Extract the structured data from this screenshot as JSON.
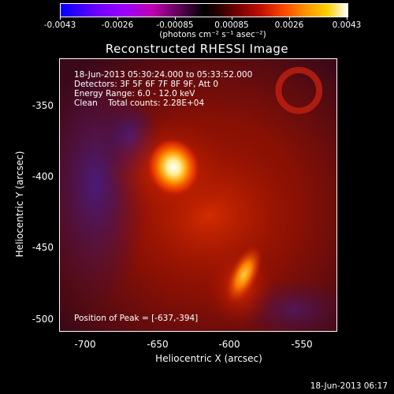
{
  "colorbar": {
    "labels": [
      "-0.0043",
      "-0.0026",
      "-0.00085",
      "0.00085",
      "0.0026",
      "0.0043"
    ],
    "units": "(photons cm⁻² s⁻¹ asec⁻²)"
  },
  "title": "Reconstructed RHESSI Image",
  "info": {
    "time_range": "18-Jun-2013 05:30:24.000 to 05:33:52.000",
    "detectors": "Detectors: 3F 5F 6F 7F 8F 9F, Att 0",
    "energy": "Energy Range: 6.0 - 12.0 keV",
    "clean": "Clean    Total counts: 2.28E+04",
    "peak": "Position of Peak = [-637,-394]"
  },
  "axes": {
    "xlabel": "Heliocentric X (arcsec)",
    "ylabel": "Heliocentric Y (arcsec)",
    "xticks": [
      "-700",
      "-650",
      "-600",
      "-550"
    ],
    "yticks": [
      "-350",
      "-400",
      "-450",
      "-500"
    ],
    "xlim": [
      -718,
      -528
    ],
    "ylim": [
      -508,
      -330
    ]
  },
  "footer": {
    "timestamp": "18-Jun-2013 06:17"
  }
}
